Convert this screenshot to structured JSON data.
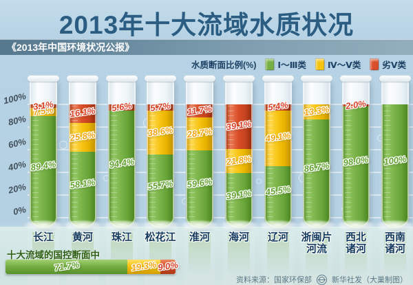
{
  "header": {
    "title": "2013年十大流域水质状况",
    "subtitle": "《2013年中国环境状况公报》"
  },
  "legend": {
    "title": "水质断面比例(%)",
    "items": [
      {
        "label": "Ⅰ～Ⅲ类",
        "color": "#76b043"
      },
      {
        "label": "Ⅳ～Ⅴ类",
        "color": "#f6c30f"
      },
      {
        "label": "劣Ⅴ类",
        "color": "#d94d28"
      }
    ]
  },
  "chart_data": {
    "type": "bar",
    "stacked": true,
    "orientation": "vertical",
    "title": "2013年十大流域水质状况",
    "ylabel": "水质断面比例(%)",
    "ylim": [
      0,
      100
    ],
    "yticks": [
      100,
      80,
      60,
      40,
      20,
      0
    ],
    "grid": true,
    "categories": [
      "长江",
      "黄河",
      "珠江",
      "松花江",
      "淮河",
      "海河",
      "辽河",
      "浙闽片河流",
      "西北诸河",
      "西南诸河"
    ],
    "category_display": [
      "长江",
      "黄河",
      "珠江",
      "松花江",
      "淮河",
      "海河",
      "辽河",
      "浙闽片\n河流",
      "西北\n诸河",
      "西南\n诸河"
    ],
    "series": [
      {
        "name": "Ⅰ～Ⅲ类",
        "color": "#76b043",
        "values": [
          89.4,
          58.1,
          94.4,
          55.7,
          59.6,
          39.1,
          45.5,
          86.7,
          98.0,
          100
        ]
      },
      {
        "name": "Ⅳ～Ⅴ类",
        "color": "#f6c30f",
        "values": [
          7.5,
          25.8,
          0,
          38.6,
          28.7,
          21.8,
          49.1,
          13.3,
          0,
          0
        ]
      },
      {
        "name": "劣Ⅴ类",
        "color": "#d94d28",
        "values": [
          3.1,
          16.1,
          5.6,
          5.7,
          11.7,
          39.1,
          5.4,
          0,
          2.0,
          0
        ]
      }
    ],
    "summary_bar": {
      "label": "十大流域的国控断面中",
      "series_names": [
        "Ⅰ～Ⅲ类",
        "Ⅳ～Ⅴ类",
        "劣Ⅴ类"
      ],
      "values": [
        71.7,
        19.3,
        9.0
      ]
    }
  },
  "footer": {
    "source_label": "资料来源：国家环保部",
    "credit": "新华社发（大巢制图）"
  },
  "colors": {
    "background": "#b4d0e3",
    "title_text": "#2b5d82",
    "subtitle_band": "#6d8fa3",
    "legend_text": "#1d4265",
    "class1_green": "#76b043",
    "class4_yellow": "#f6c30f",
    "inferior_red": "#d94d28",
    "category_text": "#143a5e",
    "summary_label_text": "#2f6016",
    "source_text": "#5b7886"
  }
}
